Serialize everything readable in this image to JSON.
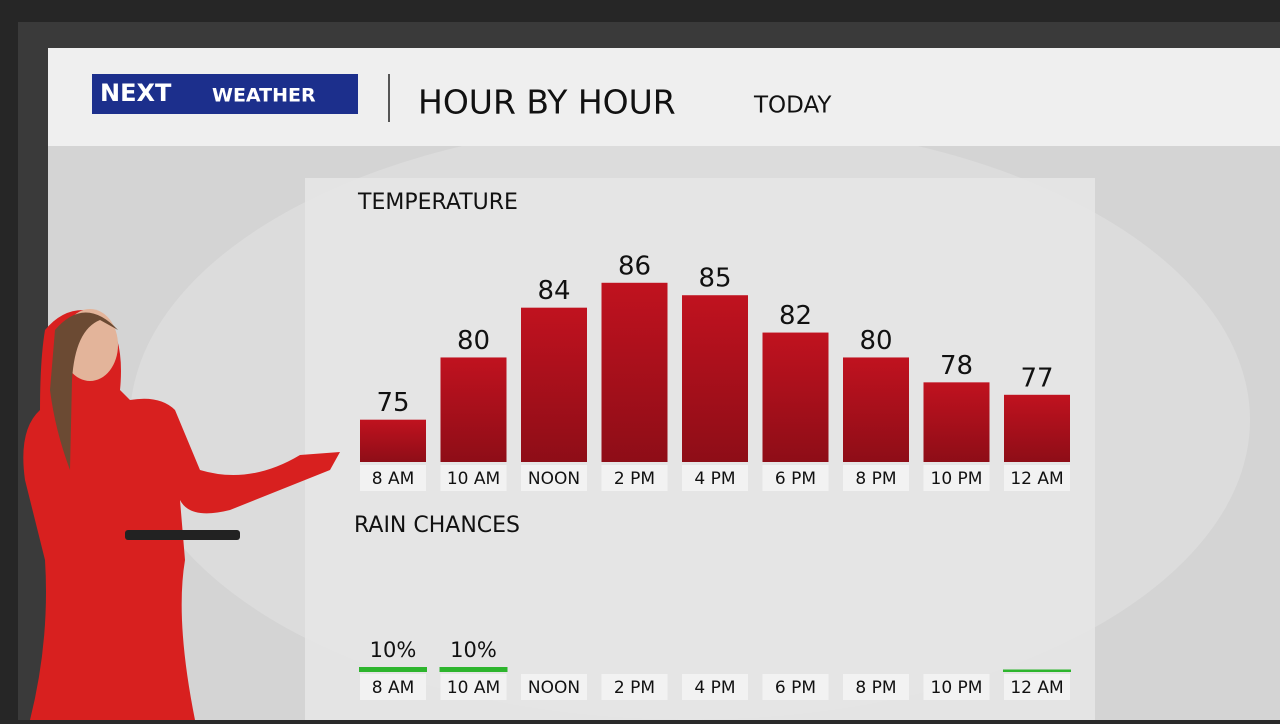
{
  "header": {
    "logo_next": "NEXT",
    "logo_weather": "WEATHER",
    "title": "HOUR BY HOUR",
    "subtitle": "TODAY"
  },
  "chart_data": [
    {
      "type": "bar",
      "title": "TEMPERATURE",
      "categories": [
        "8 AM",
        "10 AM",
        "NOON",
        "2 PM",
        "4 PM",
        "6 PM",
        "8 PM",
        "10 PM",
        "12 AM"
      ],
      "values": [
        75,
        80,
        84,
        86,
        85,
        82,
        80,
        78,
        77
      ],
      "color": "#b5131f",
      "ylim": [
        71.6,
        90
      ]
    },
    {
      "type": "bar",
      "title": "RAIN CHANCES",
      "categories": [
        "8 AM",
        "10 AM",
        "NOON",
        "2 PM",
        "4 PM",
        "6 PM",
        "8 PM",
        "10 PM",
        "12 AM"
      ],
      "values": [
        10,
        10,
        0,
        0,
        0,
        0,
        0,
        0,
        5
      ],
      "value_labels": [
        "10%",
        "10%",
        null,
        null,
        null,
        null,
        null,
        null,
        null
      ],
      "color": "#2db52d",
      "ylim": [
        0,
        100
      ]
    }
  ]
}
